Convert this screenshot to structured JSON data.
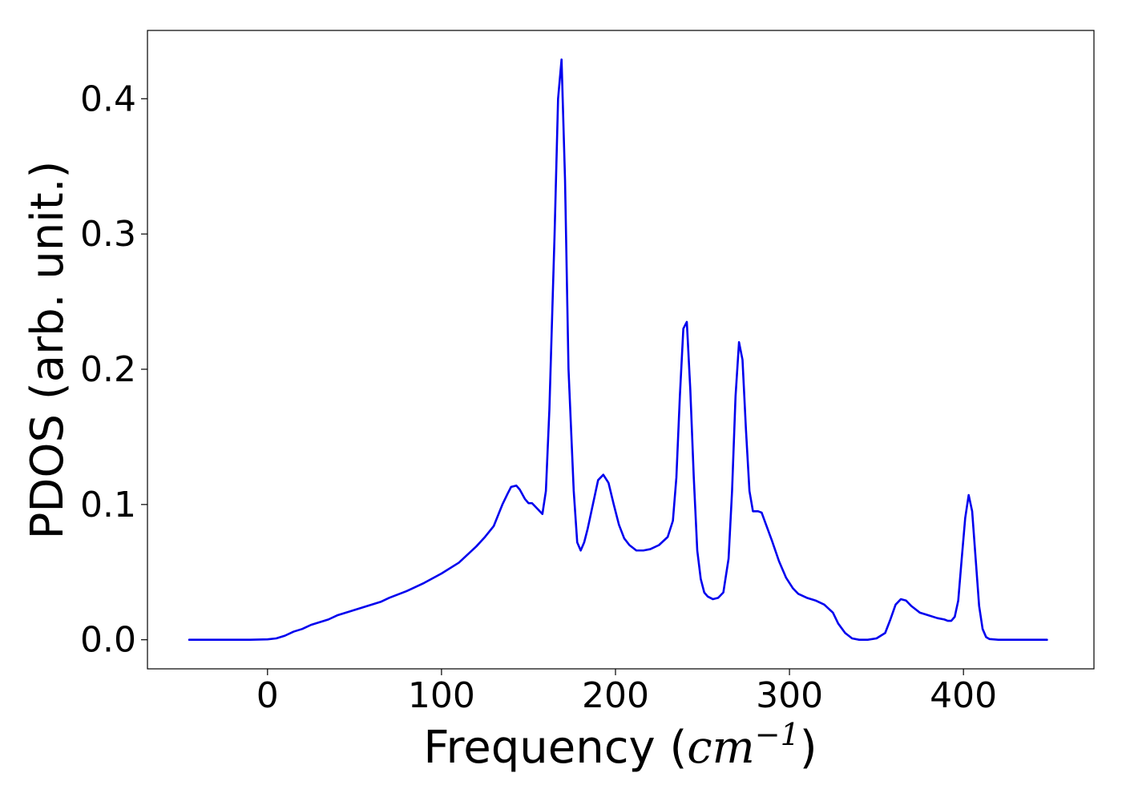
{
  "chart_data": {
    "type": "line",
    "title": "",
    "xlabel": "Frequency",
    "xlabel_unit": "cm",
    "xlabel_unit_exp": "−1",
    "ylabel": "PDOS (arb. unit.)",
    "xlim": [
      -69,
      475
    ],
    "ylim": [
      -0.0215,
      0.4505
    ],
    "xticks": [
      0,
      100,
      200,
      300,
      400
    ],
    "yticks": [
      0.0,
      0.1,
      0.2,
      0.3,
      0.4
    ],
    "xtick_labels": [
      "0",
      "100",
      "200",
      "300",
      "400"
    ],
    "ytick_labels": [
      "0.0",
      "0.1",
      "0.2",
      "0.3",
      "0.4"
    ],
    "grid": false,
    "legend": "none",
    "line_color": "#0000ee",
    "series": [
      {
        "x": [
          -45,
          -10,
          0,
          5,
          10,
          15,
          20,
          25,
          30,
          35,
          40,
          45,
          50,
          55,
          60,
          65,
          70,
          80,
          90,
          100,
          110,
          115,
          120,
          125,
          130,
          135,
          138,
          140,
          143,
          145,
          148,
          150,
          152,
          155,
          158,
          160,
          162,
          165,
          167,
          169,
          171,
          173,
          176,
          178,
          180,
          182,
          184,
          187,
          190,
          193,
          196,
          199,
          202,
          205,
          208,
          212,
          216,
          220,
          225,
          230,
          233,
          235,
          237,
          239,
          241,
          243,
          245,
          247,
          249,
          251,
          253,
          256,
          259,
          262,
          265,
          267,
          269,
          271,
          273,
          275,
          277,
          279,
          282,
          284,
          286,
          290,
          294,
          298,
          302,
          305,
          310,
          315,
          320,
          325,
          328,
          332,
          336,
          340,
          345,
          350,
          355,
          358,
          361,
          364,
          367,
          370,
          375,
          380,
          385,
          389,
          391,
          393,
          395,
          397,
          399,
          401,
          403,
          405,
          407,
          409,
          411,
          413,
          415,
          420,
          448
        ],
        "y": [
          0.0,
          0.0,
          0.0003,
          0.001,
          0.003,
          0.006,
          0.008,
          0.011,
          0.013,
          0.015,
          0.018,
          0.02,
          0.022,
          0.024,
          0.026,
          0.028,
          0.031,
          0.036,
          0.042,
          0.049,
          0.057,
          0.063,
          0.069,
          0.076,
          0.084,
          0.1,
          0.108,
          0.113,
          0.114,
          0.111,
          0.104,
          0.101,
          0.101,
          0.097,
          0.093,
          0.11,
          0.17,
          0.3,
          0.4,
          0.429,
          0.34,
          0.2,
          0.11,
          0.072,
          0.066,
          0.072,
          0.082,
          0.1,
          0.118,
          0.122,
          0.116,
          0.1,
          0.085,
          0.075,
          0.07,
          0.066,
          0.066,
          0.067,
          0.07,
          0.076,
          0.088,
          0.12,
          0.18,
          0.23,
          0.235,
          0.185,
          0.12,
          0.066,
          0.045,
          0.035,
          0.032,
          0.03,
          0.031,
          0.035,
          0.06,
          0.11,
          0.18,
          0.22,
          0.207,
          0.155,
          0.11,
          0.095,
          0.095,
          0.094,
          0.087,
          0.073,
          0.058,
          0.046,
          0.038,
          0.034,
          0.031,
          0.029,
          0.026,
          0.02,
          0.012,
          0.005,
          0.001,
          0.0,
          0.0,
          0.001,
          0.005,
          0.015,
          0.026,
          0.03,
          0.029,
          0.025,
          0.02,
          0.018,
          0.016,
          0.015,
          0.014,
          0.014,
          0.017,
          0.029,
          0.06,
          0.09,
          0.107,
          0.095,
          0.06,
          0.025,
          0.008,
          0.002,
          0.0005,
          0.0,
          0.0
        ]
      }
    ]
  }
}
